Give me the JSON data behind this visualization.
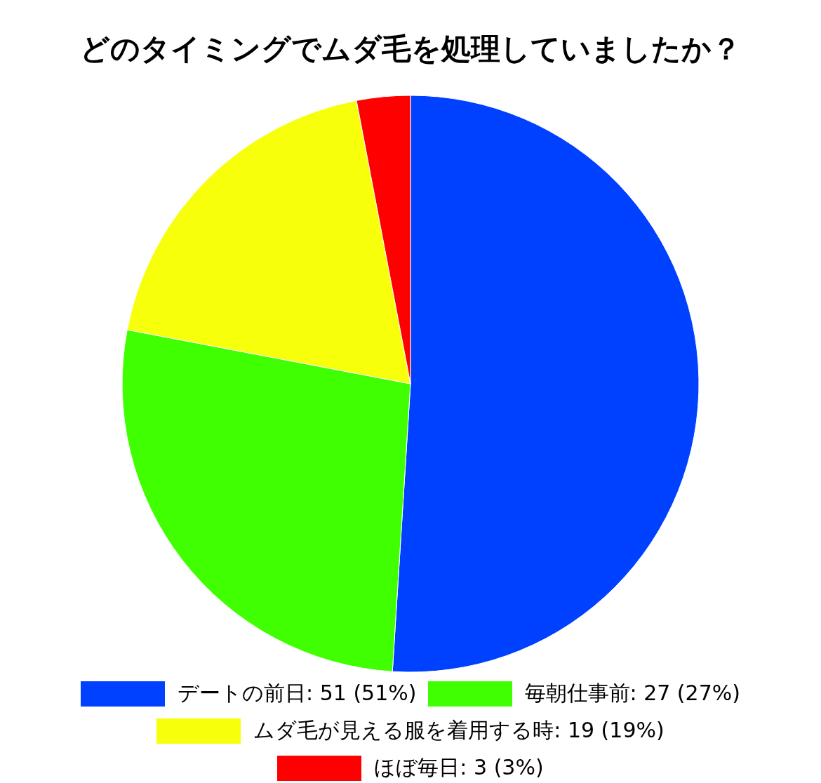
{
  "chart_data": {
    "type": "pie",
    "title": "どのタイミングでムダ毛を処理していましたか？",
    "categories": [
      "デートの前日",
      "毎朝仕事前",
      "ムダ毛が見える服を着用する時",
      "ほぼ毎日"
    ],
    "values": [
      51,
      27,
      19,
      3
    ],
    "colors": [
      "#0040ff",
      "#40ff00",
      "#f8ff0a",
      "#ff0000"
    ],
    "value_labels": [
      "51 (51%)",
      "27 (27%)",
      "19 (19%)",
      "3 (3%)"
    ],
    "legend": "bottom"
  }
}
